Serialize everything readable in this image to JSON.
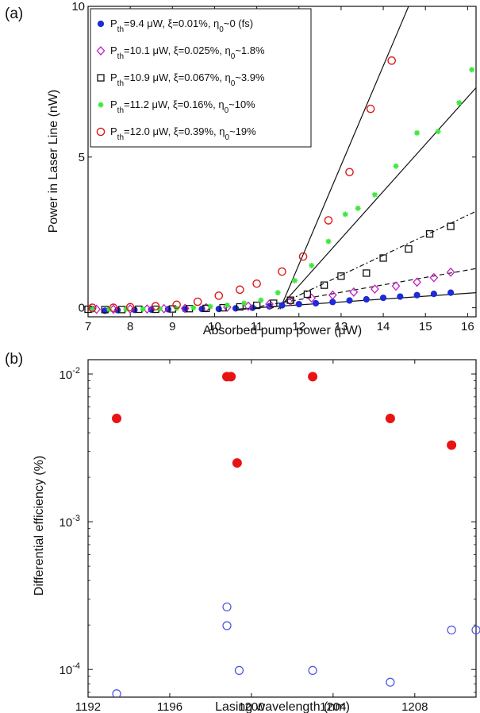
{
  "chart_data": [
    {
      "panel_label": "(a)",
      "type": "scatter",
      "xlabel": "Absorbed pump power (μW)",
      "ylabel": "Power in Laser Line (nW)",
      "xlim": [
        7,
        16.2
      ],
      "ylim": [
        -0.3,
        10
      ],
      "xticks": [
        "7",
        "8",
        "9",
        "10",
        "11",
        "12",
        "13",
        "14",
        "15",
        "16"
      ],
      "yticks": [
        "0",
        "5",
        "10"
      ],
      "legend_position": "top-left",
      "series": [
        {
          "name": "Pth=9.4 μW, ξ=0.01%, η0~0 (fs)",
          "legend": {
            "pre": "P",
            "sub1": "th",
            "mid": "=9.4 μW, ξ=0.01%, η",
            "sub2": "0",
            "post": "~0 (fs)"
          },
          "marker": "filled-circle",
          "color": "#1f2bd6",
          "x": [
            7.1,
            7.4,
            7.7,
            8.1,
            8.5,
            8.9,
            9.3,
            9.7,
            10.1,
            10.5,
            10.9,
            11.3,
            11.6,
            12.0,
            12.4,
            12.8,
            13.2,
            13.6,
            14.0,
            14.4,
            14.8,
            15.2,
            15.6
          ],
          "y": [
            -0.05,
            -0.1,
            -0.08,
            -0.07,
            -0.06,
            -0.05,
            -0.05,
            -0.04,
            -0.04,
            -0.02,
            0.0,
            0.05,
            0.08,
            0.12,
            0.15,
            0.19,
            0.24,
            0.28,
            0.33,
            0.37,
            0.42,
            0.46,
            0.5
          ],
          "fit": {
            "x": [
              10.5,
              16.2
            ],
            "y": [
              -0.05,
              0.5
            ],
            "dash": "solid"
          }
        },
        {
          "name": "Pth=10.1 μW, ξ=0.025%, η0~1.8%",
          "legend": {
            "pre": "P",
            "sub1": "th",
            "mid": "=10.1 μW, ξ=0.025%, η",
            "sub2": "0",
            "post": "~1.8%"
          },
          "marker": "open-diamond",
          "color": "#c020c0",
          "x": [
            7.2,
            7.6,
            8.0,
            8.4,
            8.8,
            9.3,
            9.8,
            10.3,
            10.8,
            11.3,
            11.8,
            12.3,
            12.8,
            13.3,
            13.8,
            14.3,
            14.8,
            15.2,
            15.6
          ],
          "y": [
            -0.05,
            -0.05,
            -0.04,
            -0.04,
            -0.03,
            -0.02,
            0.0,
            0.02,
            0.05,
            0.12,
            0.22,
            0.32,
            0.42,
            0.52,
            0.62,
            0.72,
            0.85,
            1.0,
            1.18
          ],
          "fit": {
            "x": [
              10.7,
              16.2
            ],
            "y": [
              -0.05,
              1.3
            ],
            "dash": "dashed"
          }
        },
        {
          "name": "Pth=10.9 μW, ξ=0.067%, η0~3.9%",
          "legend": {
            "pre": "P",
            "sub1": "th",
            "mid": "=10.9 μW, ξ=0.067%, η",
            "sub2": "0",
            "post": "~3.9%"
          },
          "marker": "open-square",
          "color": "#111111",
          "x": [
            7.0,
            7.4,
            7.8,
            8.2,
            8.6,
            9.0,
            9.4,
            9.8,
            10.2,
            10.6,
            11.0,
            11.4,
            11.8,
            12.2,
            12.6,
            13.0,
            13.6,
            14.0,
            14.6,
            15.1,
            15.6
          ],
          "y": [
            -0.05,
            -0.06,
            -0.06,
            -0.05,
            -0.05,
            -0.04,
            -0.03,
            -0.02,
            0.0,
            0.03,
            0.08,
            0.15,
            0.25,
            0.45,
            0.75,
            1.05,
            1.15,
            1.65,
            1.95,
            2.45,
            2.7
          ],
          "fit": {
            "x": [
              11.3,
              16.2
            ],
            "y": [
              -0.05,
              3.2
            ],
            "dash": "dashdot"
          }
        },
        {
          "name": "Pth=11.2 μW, ξ=0.16%, η0~10%",
          "legend": {
            "pre": "P",
            "sub1": "th",
            "mid": "=11.2 μW, ξ=0.16%, η",
            "sub2": "0",
            "post": "~10%"
          },
          "marker": "filled-star",
          "color": "#3ee83e",
          "x": [
            7.1,
            7.5,
            7.9,
            8.3,
            8.7,
            9.1,
            9.5,
            9.9,
            10.3,
            10.7,
            11.1,
            11.5,
            11.9,
            12.3,
            12.7,
            13.1,
            13.4,
            13.8,
            14.3,
            14.8,
            15.3,
            15.8,
            16.1
          ],
          "y": [
            -0.05,
            -0.05,
            -0.04,
            -0.04,
            -0.03,
            -0.02,
            0.0,
            0.04,
            0.08,
            0.15,
            0.25,
            0.5,
            0.9,
            1.4,
            2.2,
            3.1,
            3.3,
            3.75,
            4.7,
            5.8,
            5.85,
            6.8,
            7.9
          ],
          "fit": {
            "x": [
              11.5,
              16.2
            ],
            "y": [
              -0.05,
              7.3
            ],
            "dash": "solid"
          }
        },
        {
          "name": "Pth=12.0 μW, ξ=0.39%, η0~19%",
          "legend": {
            "pre": "P",
            "sub1": "th",
            "mid": "=12.0 μW, ξ=0.39%, η",
            "sub2": "0",
            "post": "~19%"
          },
          "marker": "open-circle",
          "color": "#e01818",
          "x": [
            7.1,
            7.6,
            8.0,
            8.6,
            9.1,
            9.6,
            10.1,
            10.6,
            11.0,
            11.6,
            12.1,
            12.7,
            13.2,
            13.7,
            14.2
          ],
          "y": [
            0.0,
            0.0,
            0.02,
            0.05,
            0.1,
            0.2,
            0.4,
            0.6,
            0.8,
            1.2,
            1.7,
            2.9,
            4.5,
            6.6,
            8.2
          ],
          "fit": {
            "x": [
              11.55,
              14.6
            ],
            "y": [
              -0.05,
              10.0
            ],
            "dash": "solid"
          }
        }
      ]
    },
    {
      "panel_label": "(b)",
      "type": "scatter",
      "xlabel": "Lasing wavelength (nm)",
      "ylabel": "Differential efficiency (%)",
      "xlim": [
        1192,
        1211
      ],
      "yscale": "log",
      "ylim": [
        6.5e-05,
        0.0125
      ],
      "xticks": [
        "1192",
        "1196",
        "1200",
        "1204",
        "1208"
      ],
      "yticks": [
        {
          "base": "10",
          "exp": "-2",
          "value": 0.01
        },
        {
          "base": "10",
          "exp": "-3",
          "value": 0.001
        },
        {
          "base": "10",
          "exp": "-4",
          "value": 0.0001
        }
      ],
      "series": [
        {
          "marker": "filled-circle",
          "color": "#e81414",
          "x": [
            1193.4,
            1198.8,
            1199.0,
            1199.3,
            1203.0,
            1206.8,
            1209.8
          ],
          "y": [
            0.005,
            0.0096,
            0.0096,
            0.0025,
            0.0096,
            0.005,
            0.0033
          ]
        },
        {
          "marker": "open-circle",
          "color": "#4a50e0",
          "x": [
            1193.4,
            1198.8,
            1198.8,
            1199.4,
            1203.0,
            1206.8,
            1209.8,
            1211.0
          ],
          "y": [
            6.85e-05,
            0.000265,
            0.000198,
            9.85e-05,
            9.85e-05,
            8.2e-05,
            0.000185,
            0.000185
          ]
        }
      ]
    }
  ]
}
